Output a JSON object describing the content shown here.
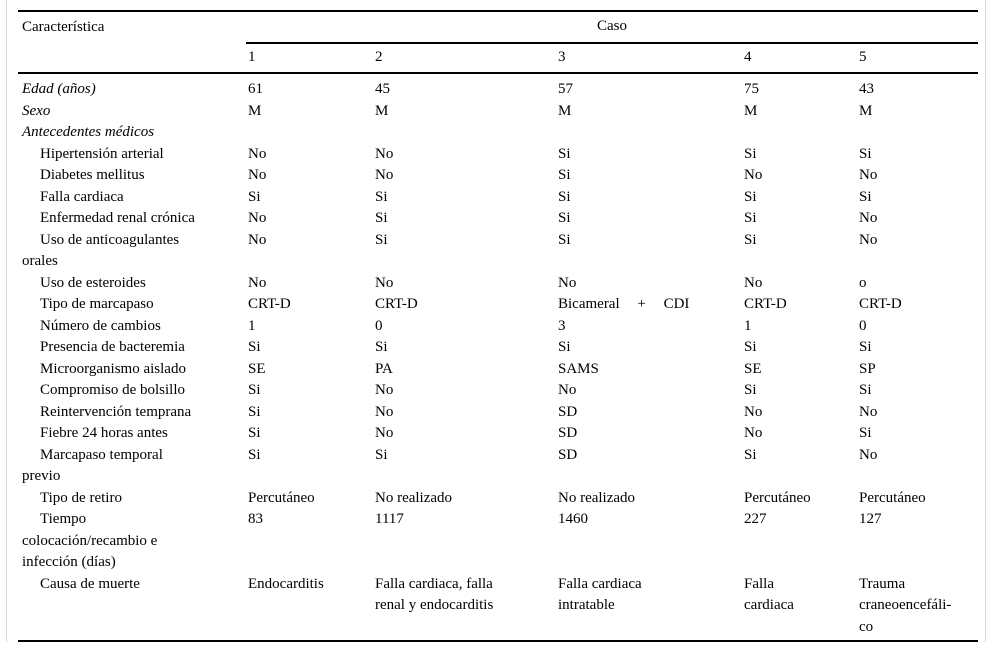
{
  "meta": {
    "background_color": "#ffffff",
    "text_color": "#000000",
    "rule_color": "#000000",
    "frame_color": "#d9d9d9"
  },
  "table": {
    "header": {
      "characteristic_label": "Característica",
      "group_label": "Caso",
      "case_columns": [
        "1",
        "2",
        "3",
        "4",
        "5"
      ]
    },
    "rows": [
      {
        "label": "Edad (años)",
        "style": "main",
        "values": [
          "61",
          "45",
          "57",
          "75",
          "43"
        ]
      },
      {
        "label": "Sexo",
        "style": "main",
        "values": [
          "M",
          "M",
          "M",
          "M",
          "M"
        ]
      },
      {
        "label": "Antecedentes médicos",
        "style": "main",
        "values": [
          "",
          "",
          "",
          "",
          ""
        ]
      },
      {
        "label": "Hipertensión arterial",
        "style": "sub",
        "values": [
          "No",
          "No",
          "Si",
          "Si",
          "Si"
        ]
      },
      {
        "label": "Diabetes mellitus",
        "style": "sub",
        "values": [
          "No",
          "No",
          "Si",
          "No",
          "No"
        ]
      },
      {
        "label": "Falla cardiaca",
        "style": "sub",
        "values": [
          "Si",
          "Si",
          "Si",
          "Si",
          "Si"
        ]
      },
      {
        "label": "Enfermedad renal crónica",
        "style": "sub",
        "values": [
          "No",
          "Si",
          "Si",
          "Si",
          "No"
        ]
      },
      {
        "label": "Uso de anticoagulantes\norales",
        "style": "sub",
        "values": [
          "No",
          "Si",
          "Si",
          "Si",
          "No"
        ]
      },
      {
        "label": "Uso de esteroides",
        "style": "sub",
        "values": [
          "No",
          "No",
          "No",
          "No",
          "o"
        ]
      },
      {
        "label": "Tipo de marcapaso",
        "style": "sub",
        "justify_col": 2,
        "values": [
          "CRT-D",
          "CRT-D",
          "Bicameral + CDI",
          "CRT-D",
          "CRT-D"
        ]
      },
      {
        "label": "Número de cambios",
        "style": "sub",
        "values": [
          "1",
          "0",
          "3",
          "1",
          "0"
        ]
      },
      {
        "label": "Presencia de bacteremia",
        "style": "sub",
        "values": [
          "Si",
          "Si",
          "Si",
          "Si",
          "Si"
        ]
      },
      {
        "label": "Microorganismo aislado",
        "style": "sub",
        "values": [
          "SE",
          "PA",
          "SAMS",
          "SE",
          "SP"
        ]
      },
      {
        "label": "Compromiso de bolsillo",
        "style": "sub",
        "values": [
          "Si",
          "No",
          "No",
          "Si",
          "Si"
        ]
      },
      {
        "label": "Reintervención temprana",
        "style": "sub",
        "values": [
          "Si",
          "No",
          "SD",
          "No",
          "No"
        ]
      },
      {
        "label": "Fiebre 24 horas antes",
        "style": "sub",
        "values": [
          "Si",
          "No",
          "SD",
          "No",
          "Si"
        ]
      },
      {
        "label": "Marcapaso temporal\nprevio",
        "style": "sub",
        "values": [
          "Si",
          "Si",
          "SD",
          "Si",
          "No"
        ]
      },
      {
        "label": "Tipo de retiro",
        "style": "sub",
        "values": [
          "Percutáneo",
          "No realizado",
          "No realizado",
          "Percutáneo",
          "Percutáneo"
        ]
      },
      {
        "label": "Tiempo\ncolocación/recambio e\ninfección (días)",
        "style": "sub",
        "values": [
          "83",
          "1117",
          "1460",
          "227",
          "127"
        ]
      },
      {
        "label": "Causa de muerte",
        "style": "sub",
        "values": [
          "Endocarditis",
          "Falla cardiaca, falla\nrenal y endocarditis",
          "Falla cardiaca\nintratable",
          "Falla\ncardiaca",
          "Trauma\ncraneoencefáli-\nco"
        ]
      }
    ]
  }
}
